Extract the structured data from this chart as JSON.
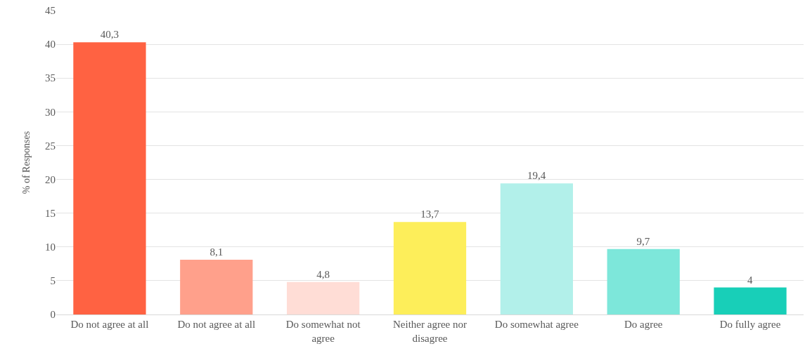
{
  "chart_data": {
    "type": "bar",
    "ylabel": "% of Responses",
    "categories": [
      "Do not agree at all",
      "Do not agree at all",
      "Do somewhat not agree",
      "Neither agree nor disagree",
      "Do somewhat agree",
      "Do agree",
      "Do fully agree"
    ],
    "values": [
      40.3,
      8.1,
      4.8,
      13.7,
      19.4,
      9.7,
      4
    ],
    "value_labels": [
      "40,3",
      "8,1",
      "4,8",
      "13,7",
      "19,4",
      "9,7",
      "4"
    ],
    "colors": [
      "#ff6242",
      "#ffa08b",
      "#ffddd6",
      "#fdee5a",
      "#b2f0ea",
      "#7de7da",
      "#18cfb8"
    ],
    "ylim": [
      0,
      45
    ],
    "yticks": [
      0,
      5,
      10,
      15,
      20,
      25,
      30,
      35,
      40,
      45
    ],
    "grid": "y"
  }
}
